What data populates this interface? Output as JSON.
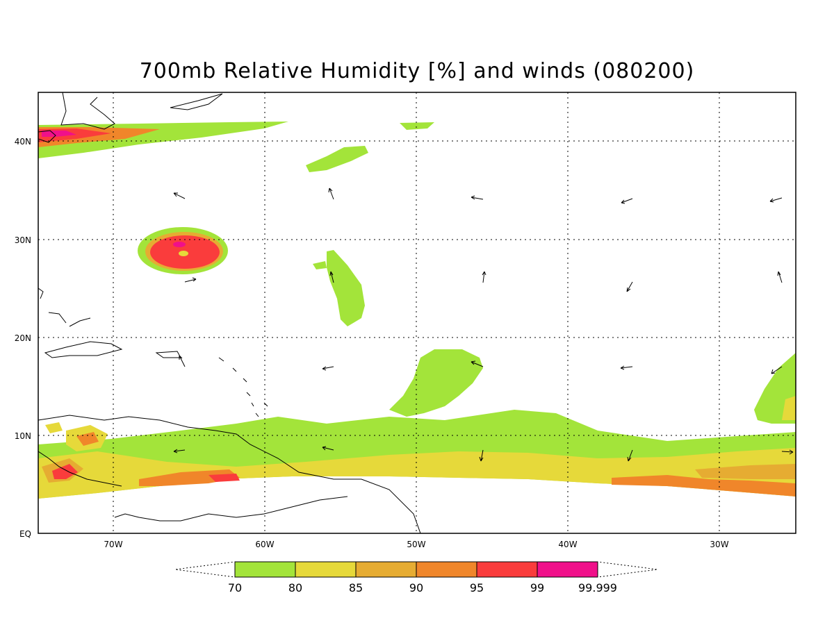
{
  "title": "700mb Relative Humidity [%] and winds (080200)",
  "map": {
    "lon_range": [
      -75,
      -25
    ],
    "lat_range": [
      0,
      45
    ],
    "lon_ticks": [
      "70W",
      "60W",
      "50W",
      "40W",
      "30W"
    ],
    "lat_ticks": [
      "EQ",
      "10N",
      "20N",
      "30N",
      "40N"
    ],
    "grid": "dotted"
  },
  "colorbar": {
    "labels": [
      "70",
      "80",
      "85",
      "90",
      "95",
      "99",
      "99.999"
    ],
    "colors": [
      "#a3e43a",
      "#e6d93a",
      "#e6ac32",
      "#f0862a",
      "#fa3c3c",
      "#f0108a"
    ]
  },
  "colors": {
    "rh_70": "#a3e43a",
    "rh_80": "#e6d93a",
    "rh_85": "#e6ac32",
    "rh_90": "#f0862a",
    "rh_95": "#fa3c3c",
    "rh_99": "#f0108a"
  }
}
